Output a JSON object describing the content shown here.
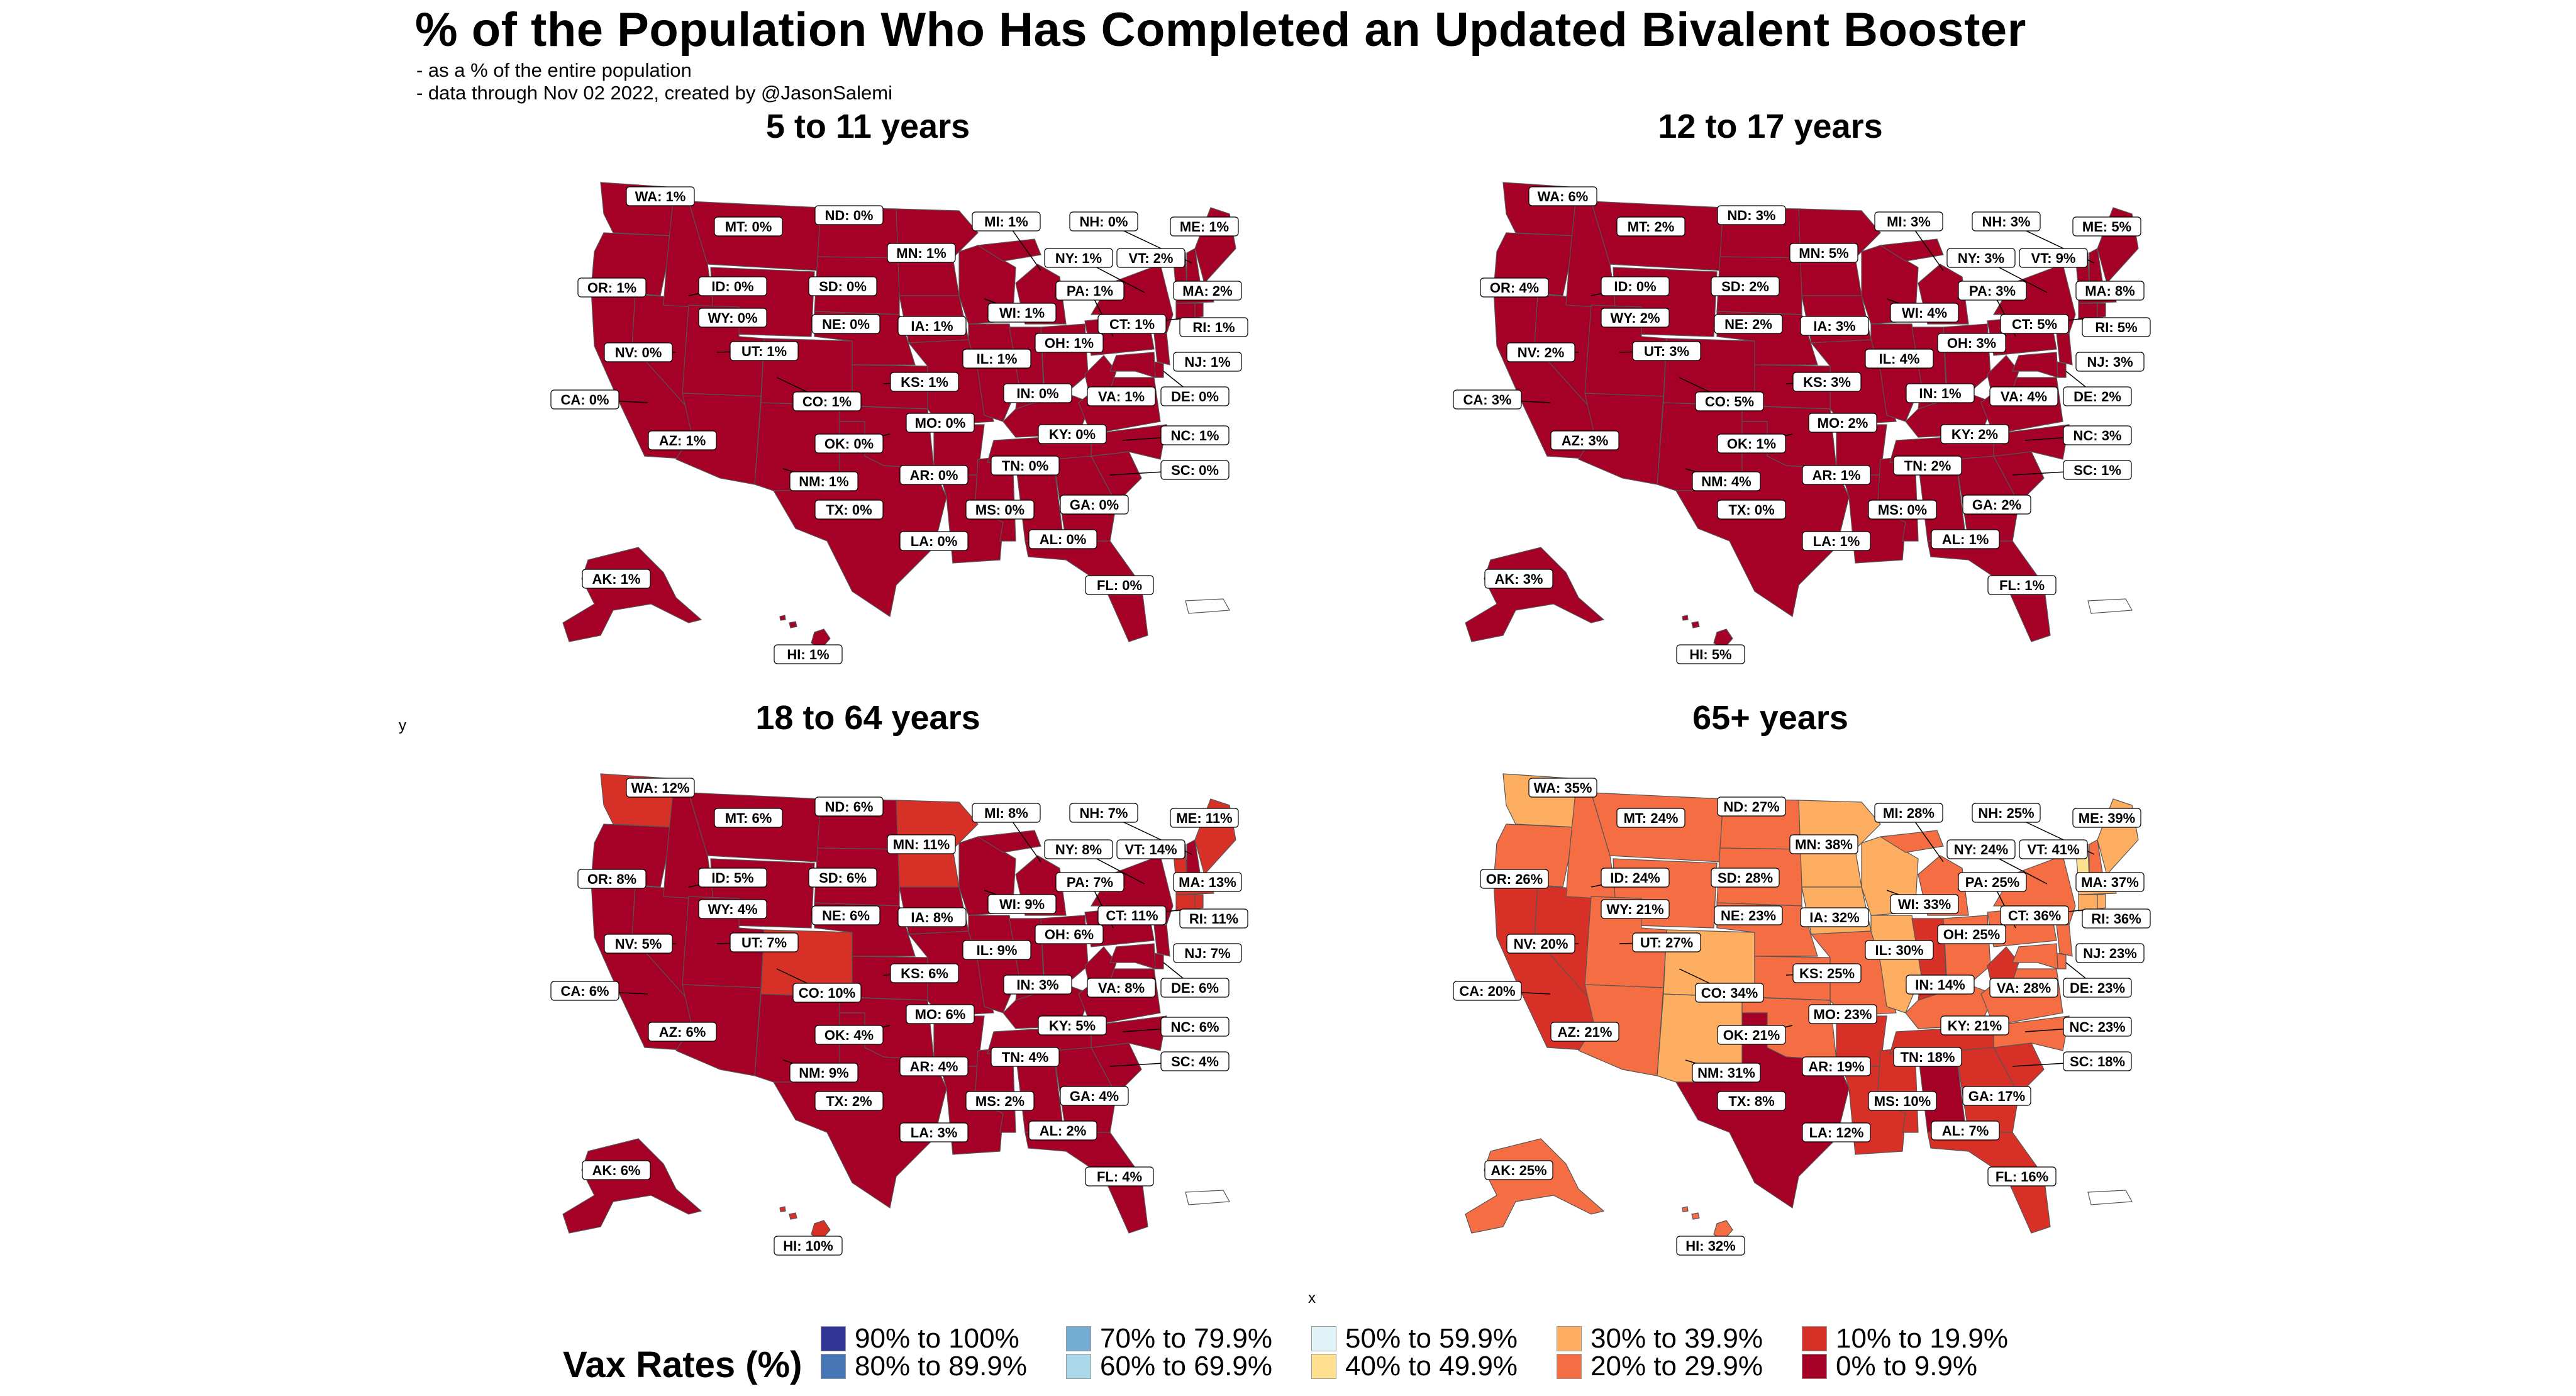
{
  "title": "% of the Population Who Has Completed an Updated Bivalent Booster",
  "subtitle_lines": [
    "- as a % of the entire population",
    "- data through Nov 02 2022, created by @JasonSalemi"
  ],
  "axis_x_label": "x",
  "axis_y_label": "y",
  "legend": {
    "title": "Vax Rates (%)",
    "items": [
      {
        "label": "90% to 100%",
        "color": "#313695"
      },
      {
        "label": "80% to 89.9%",
        "color": "#4575b4"
      },
      {
        "label": "70% to 79.9%",
        "color": "#74add1"
      },
      {
        "label": "60% to 69.9%",
        "color": "#abd9e9"
      },
      {
        "label": "50% to 59.9%",
        "color": "#e0f3f8"
      },
      {
        "label": "40% to 49.9%",
        "color": "#fee090"
      },
      {
        "label": "30% to 39.9%",
        "color": "#fdae61"
      },
      {
        "label": "20% to 29.9%",
        "color": "#f46d43"
      },
      {
        "label": "10% to 19.9%",
        "color": "#d73027"
      },
      {
        "label": "0% to 9.9%",
        "color": "#a50026"
      }
    ]
  },
  "panels": [
    {
      "title": "5 to 11 years",
      "labels": [
        {
          "text": "WA:  1%"
        },
        {
          "text": "MT:  0%"
        },
        {
          "text": "ND:  0%"
        },
        {
          "text": "MI:  1%"
        },
        {
          "text": "NH:  0%"
        },
        {
          "text": "ME:  1%"
        },
        {
          "text": "MN:  1%"
        },
        {
          "text": "NY:  1%"
        },
        {
          "text": "VT:  2%"
        },
        {
          "text": "OR:  1%"
        },
        {
          "text": "ID:  0%"
        },
        {
          "text": "SD:  0%"
        },
        {
          "text": "PA:  1%"
        },
        {
          "text": "MA:  2%"
        },
        {
          "text": "WY:  0%"
        },
        {
          "text": "NE:  0%"
        },
        {
          "text": "IA:  1%"
        },
        {
          "text": "WI:  1%"
        },
        {
          "text": "CT:  1%"
        },
        {
          "text": "RI:  1%"
        },
        {
          "text": "NV:  0%"
        },
        {
          "text": "UT:  1%"
        },
        {
          "text": "OH:  1%"
        },
        {
          "text": "IL:  1%"
        },
        {
          "text": "NJ:  1%"
        },
        {
          "text": "KS:  1%"
        },
        {
          "text": "CA:  0%"
        },
        {
          "text": "IN:  0%"
        },
        {
          "text": "VA:  1%"
        },
        {
          "text": "DE:  0%"
        },
        {
          "text": "CO:  1%"
        },
        {
          "text": "MO:  0%"
        },
        {
          "text": "AZ:  1%"
        },
        {
          "text": "OK:  0%"
        },
        {
          "text": "KY:  0%"
        },
        {
          "text": "NC:  1%"
        },
        {
          "text": "TN:  0%"
        },
        {
          "text": "AR:  0%"
        },
        {
          "text": "SC:  0%"
        },
        {
          "text": "NM:  1%"
        },
        {
          "text": "TX:  0%"
        },
        {
          "text": "MS:  0%"
        },
        {
          "text": "GA:  0%"
        },
        {
          "text": "LA:  0%"
        },
        {
          "text": "AL:  0%"
        },
        {
          "text": "AK:  1%"
        },
        {
          "text": "FL:  0%"
        },
        {
          "text": "HI:  1%"
        }
      ]
    },
    {
      "title": "12 to 17 years",
      "labels": [
        {
          "text": "WA:  6%"
        },
        {
          "text": "MT:  2%"
        },
        {
          "text": "ND:  3%"
        },
        {
          "text": "MI:  3%"
        },
        {
          "text": "NH:  3%"
        },
        {
          "text": "ME:  5%"
        },
        {
          "text": "MN:  5%"
        },
        {
          "text": "NY:  3%"
        },
        {
          "text": "VT:  9%"
        },
        {
          "text": "OR:  4%"
        },
        {
          "text": "ID:  0%"
        },
        {
          "text": "SD:  2%"
        },
        {
          "text": "PA:  3%"
        },
        {
          "text": "MA:  8%"
        },
        {
          "text": "WY:  2%"
        },
        {
          "text": "NE:  2%"
        },
        {
          "text": "IA:  3%"
        },
        {
          "text": "WI:  4%"
        },
        {
          "text": "CT:  5%"
        },
        {
          "text": "RI:  5%"
        },
        {
          "text": "NV:  2%"
        },
        {
          "text": "UT:  3%"
        },
        {
          "text": "OH:  3%"
        },
        {
          "text": "IL:  4%"
        },
        {
          "text": "NJ:  3%"
        },
        {
          "text": "KS:  3%"
        },
        {
          "text": "CA:  3%"
        },
        {
          "text": "IN:  1%"
        },
        {
          "text": "VA:  4%"
        },
        {
          "text": "DE:  2%"
        },
        {
          "text": "CO:  5%"
        },
        {
          "text": "MO:  2%"
        },
        {
          "text": "AZ:  3%"
        },
        {
          "text": "OK:  1%"
        },
        {
          "text": "KY:  2%"
        },
        {
          "text": "NC:  3%"
        },
        {
          "text": "TN:  2%"
        },
        {
          "text": "AR:  1%"
        },
        {
          "text": "SC:  1%"
        },
        {
          "text": "NM:  4%"
        },
        {
          "text": "TX:  0%"
        },
        {
          "text": "MS:  0%"
        },
        {
          "text": "GA:  2%"
        },
        {
          "text": "LA:  1%"
        },
        {
          "text": "AL:  1%"
        },
        {
          "text": "AK:  3%"
        },
        {
          "text": "FL:  1%"
        },
        {
          "text": "HI:  5%"
        }
      ]
    },
    {
      "title": "18 to 64 years",
      "labels": [
        {
          "text": "WA: 12%"
        },
        {
          "text": "MT:  6%"
        },
        {
          "text": "ND:  6%"
        },
        {
          "text": "MI:  8%"
        },
        {
          "text": "NH:  7%"
        },
        {
          "text": "ME: 11%"
        },
        {
          "text": "MN: 11%"
        },
        {
          "text": "NY:  8%"
        },
        {
          "text": "VT: 14%"
        },
        {
          "text": "OR:  8%"
        },
        {
          "text": "ID:  5%"
        },
        {
          "text": "SD:  6%"
        },
        {
          "text": "PA:  7%"
        },
        {
          "text": "MA: 13%"
        },
        {
          "text": "WY:  4%"
        },
        {
          "text": "NE:  6%"
        },
        {
          "text": "IA:  8%"
        },
        {
          "text": "WI:  9%"
        },
        {
          "text": "CT: 11%"
        },
        {
          "text": "RI: 11%"
        },
        {
          "text": "NV:  5%"
        },
        {
          "text": "UT:  7%"
        },
        {
          "text": "OH:  6%"
        },
        {
          "text": "IL:  9%"
        },
        {
          "text": "NJ:  7%"
        },
        {
          "text": "KS:  6%"
        },
        {
          "text": "CA:  6%"
        },
        {
          "text": "IN:  3%"
        },
        {
          "text": "VA:  8%"
        },
        {
          "text": "DE:  6%"
        },
        {
          "text": "CO: 10%"
        },
        {
          "text": "MO:  6%"
        },
        {
          "text": "AZ:  6%"
        },
        {
          "text": "OK:  4%"
        },
        {
          "text": "KY:  5%"
        },
        {
          "text": "NC:  6%"
        },
        {
          "text": "TN:  4%"
        },
        {
          "text": "AR:  4%"
        },
        {
          "text": "SC:  4%"
        },
        {
          "text": "NM:  9%"
        },
        {
          "text": "TX:  2%"
        },
        {
          "text": "MS:  2%"
        },
        {
          "text": "GA:  4%"
        },
        {
          "text": "LA:  3%"
        },
        {
          "text": "AL:  2%"
        },
        {
          "text": "AK:  6%"
        },
        {
          "text": "FL:  4%"
        },
        {
          "text": "HI: 10%"
        }
      ]
    },
    {
      "title": "65+ years",
      "labels": [
        {
          "text": "WA: 35%"
        },
        {
          "text": "MT: 24%"
        },
        {
          "text": "ND: 27%"
        },
        {
          "text": "MI: 28%"
        },
        {
          "text": "NH: 25%"
        },
        {
          "text": "ME: 39%"
        },
        {
          "text": "MN: 38%"
        },
        {
          "text": "NY: 24%"
        },
        {
          "text": "VT: 41%"
        },
        {
          "text": "OR: 26%"
        },
        {
          "text": "ID: 24%"
        },
        {
          "text": "SD: 28%"
        },
        {
          "text": "PA: 25%"
        },
        {
          "text": "MA: 37%"
        },
        {
          "text": "WY: 21%"
        },
        {
          "text": "NE: 23%"
        },
        {
          "text": "IA: 32%"
        },
        {
          "text": "WI: 33%"
        },
        {
          "text": "CT: 36%"
        },
        {
          "text": "RI: 36%"
        },
        {
          "text": "NV: 20%"
        },
        {
          "text": "UT: 27%"
        },
        {
          "text": "OH: 25%"
        },
        {
          "text": "IL: 30%"
        },
        {
          "text": "NJ: 23%"
        },
        {
          "text": "KS: 25%"
        },
        {
          "text": "CA: 20%"
        },
        {
          "text": "IN: 14%"
        },
        {
          "text": "VA: 28%"
        },
        {
          "text": "DE: 23%"
        },
        {
          "text": "CO: 34%"
        },
        {
          "text": "MO: 23%"
        },
        {
          "text": "AZ: 21%"
        },
        {
          "text": "OK: 21%"
        },
        {
          "text": "KY: 21%"
        },
        {
          "text": "NC: 23%"
        },
        {
          "text": "TN: 18%"
        },
        {
          "text": "AR: 19%"
        },
        {
          "text": "SC: 18%"
        },
        {
          "text": "NM: 31%"
        },
        {
          "text": "TX:  8%"
        },
        {
          "text": "MS: 10%"
        },
        {
          "text": "GA: 17%"
        },
        {
          "text": "LA: 12%"
        },
        {
          "text": "AL:  7%"
        },
        {
          "text": "AK: 25%"
        },
        {
          "text": "FL: 16%"
        },
        {
          "text": "HI: 32%"
        }
      ]
    }
  ]
}
